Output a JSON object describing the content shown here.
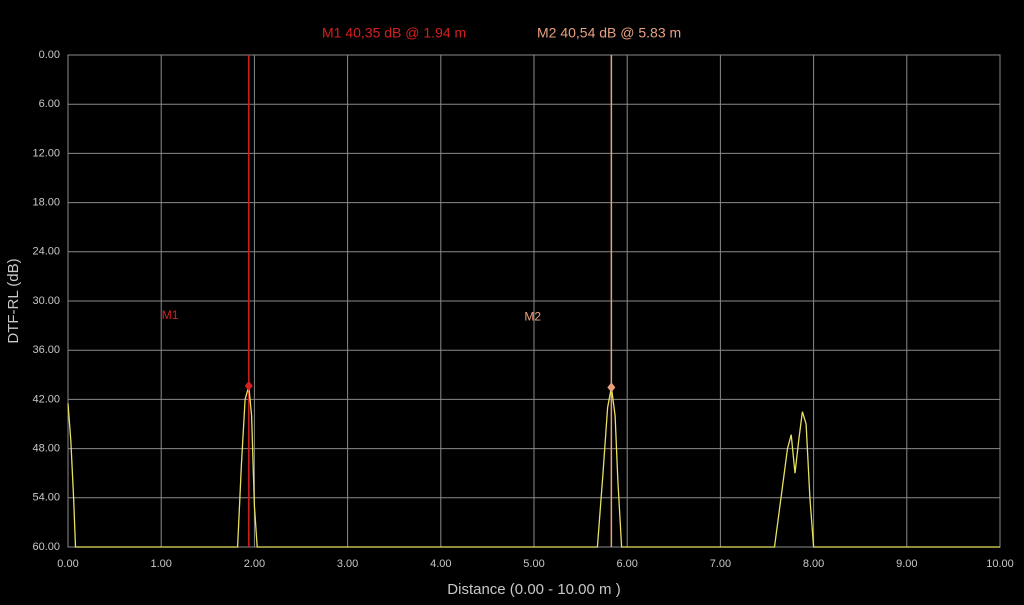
{
  "chart_data": {
    "type": "line",
    "y_label": "DTF-RL (dB)",
    "x_label": "Distance (0.00 - 10.00 m )",
    "xlim": [
      0,
      10
    ],
    "ylim": [
      0,
      60
    ],
    "y_inverted": true,
    "grid": true,
    "xticks": [
      {
        "value": 0,
        "label": "0.00"
      },
      {
        "value": 1,
        "label": "1.00"
      },
      {
        "value": 2,
        "label": "2.00"
      },
      {
        "value": 3,
        "label": "3.00"
      },
      {
        "value": 4,
        "label": "4.00"
      },
      {
        "value": 5,
        "label": "5.00"
      },
      {
        "value": 6,
        "label": "6.00"
      },
      {
        "value": 7,
        "label": "7.00"
      },
      {
        "value": 8,
        "label": "8.00"
      },
      {
        "value": 9,
        "label": "9.00"
      },
      {
        "value": 10,
        "label": "10.00"
      }
    ],
    "yticks": [
      {
        "value": 0,
        "label": "0.00"
      },
      {
        "value": 6,
        "label": "6.00"
      },
      {
        "value": 12,
        "label": "12.00"
      },
      {
        "value": 18,
        "label": "18.00"
      },
      {
        "value": 24,
        "label": "24.00"
      },
      {
        "value": 30,
        "label": "30.00"
      },
      {
        "value": 36,
        "label": "36.00"
      },
      {
        "value": 42,
        "label": "42.00"
      },
      {
        "value": 48,
        "label": "48.00"
      },
      {
        "value": 54,
        "label": "54.00"
      },
      {
        "value": 60,
        "label": "60.00"
      }
    ],
    "x": [
      0,
      0.03,
      0.06,
      0.08,
      1.82,
      1.86,
      1.9,
      1.94,
      1.97,
      2.0,
      2.03,
      5.68,
      5.74,
      5.79,
      5.83,
      5.87,
      5.9,
      5.94,
      7.58,
      7.65,
      7.72,
      7.76,
      7.8,
      7.84,
      7.88,
      7.92,
      7.96,
      8.0,
      10.0
    ],
    "series": [
      {
        "color": "#e8e060",
        "values": [
          42.5,
          47,
          54,
          60,
          60,
          50,
          42,
          40.4,
          44,
          55,
          60,
          60,
          51,
          43,
          40.5,
          44,
          52,
          60,
          60,
          54,
          48,
          46.3,
          51,
          47,
          43.5,
          45,
          54,
          60,
          60
        ]
      }
    ],
    "markers": [
      {
        "name": "M1",
        "label": "M1  40,35 dB @ 1.94 m",
        "x": 1.94,
        "value": 40.35,
        "color": "#d42020"
      },
      {
        "name": "M2",
        "label": "M2  40,54 dB @ 5.83 m",
        "x": 5.83,
        "value": 40.54,
        "color": "#e8a080"
      }
    ]
  }
}
